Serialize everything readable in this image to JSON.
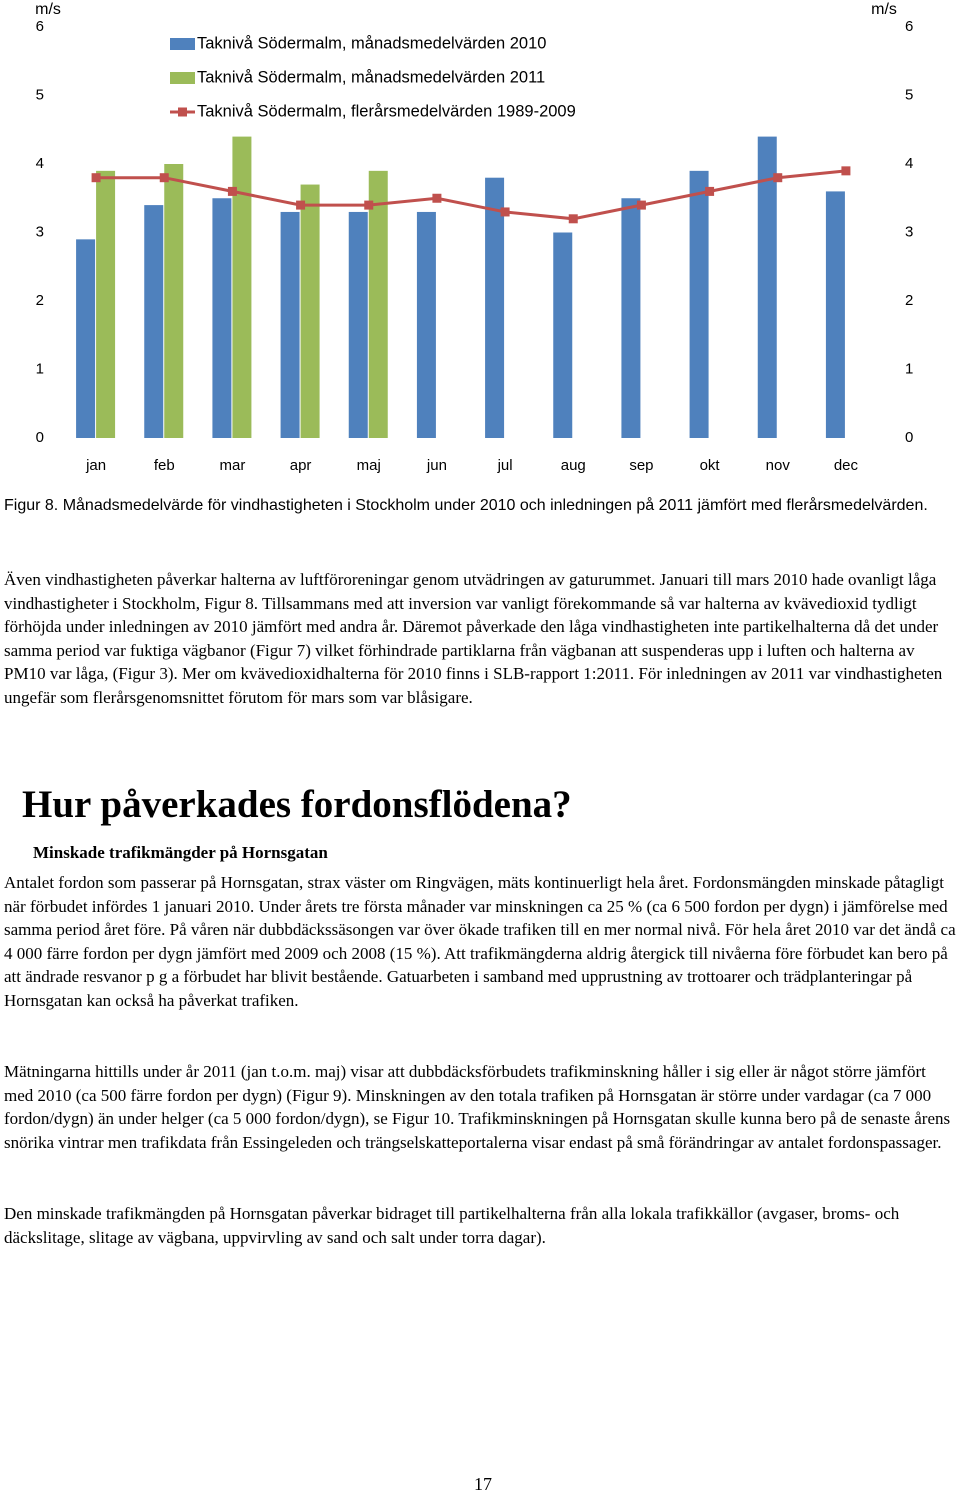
{
  "chart_data": {
    "type": "bar",
    "y_label": "m/s",
    "y2_label": "m/s",
    "categories": [
      "jan",
      "feb",
      "mar",
      "apr",
      "maj",
      "jun",
      "jul",
      "aug",
      "sep",
      "okt",
      "nov",
      "dec"
    ],
    "series": [
      {
        "name": "Taknivå Södermalm, månadsmedelvärden 2010",
        "type": "bar",
        "color": "#4f81bd",
        "values": [
          2.9,
          3.4,
          3.5,
          3.3,
          3.3,
          3.3,
          3.8,
          3.0,
          3.5,
          3.9,
          4.4,
          3.6
        ]
      },
      {
        "name": "Taknivå Södermalm, månadsmedelvärden 2011",
        "type": "bar",
        "color": "#9bbb59",
        "values": [
          3.9,
          4.0,
          4.4,
          3.7,
          3.9,
          null,
          null,
          null,
          null,
          null,
          null,
          null
        ]
      },
      {
        "name": "Taknivå Södermalm, flerårsmedelvärden 1989-2009",
        "type": "line",
        "color": "#c0504d",
        "values": [
          3.8,
          3.8,
          3.6,
          3.4,
          3.4,
          3.5,
          3.3,
          3.2,
          3.4,
          3.6,
          3.8,
          3.9
        ]
      }
    ],
    "ylim": [
      0,
      6
    ],
    "yticks": [
      0,
      1,
      2,
      3,
      4,
      5,
      6
    ],
    "y2lim": [
      0,
      6
    ],
    "y2ticks": [
      0,
      1,
      2,
      3,
      4,
      5,
      6
    ],
    "grid": false,
    "legend": "top-left"
  },
  "document": {
    "caption": "Figur 8. Månadsmedelvärde för vindhastigheten i Stockholm under 2010 och inledningen på 2011 jämfört med flerårsmedelvärden.",
    "paragraph_1": "Även vindhastigheten påverkar halterna av luftföroreningar genom utvädringen av gaturummet. Januari till mars 2010 hade ovanligt låga vindhastigheter i Stockholm, Figur 8. Tillsammans med att inversion var vanligt förekommande så var halterna av kvävedioxid tydligt förhöjda under inledningen av 2010 jämfört med andra år. Däremot påverkade den låga vindhastigheten inte partikelhalterna då det under samma period var fuktiga vägbanor (Figur 7) vilket förhindrade partiklarna från vägbanan att suspenderas upp i luften och halterna av PM10 var låga, (Figur 3). Mer om kvävedioxidhalterna för 2010 finns i SLB-rapport 1:2011. För inledningen av 2011 var vindhastigheten ungefär som flerårsgenomsnittet förutom för mars som var blåsigare.",
    "heading": "Hur påverkades fordonsflödena?",
    "subheading": "Minskade trafikmängder på Hornsgatan",
    "paragraph_2": "Antalet fordon som passerar på Hornsgatan, strax väster om Ringvägen, mäts kontinuerligt hela året. Fordonsmängden minskade påtagligt när förbudet infördes 1 januari 2010. Under årets tre första månader var minskningen ca 25 % (ca 6 500 fordon per dygn) i jämförelse med samma period året före. På våren när dubbdäckssäsongen var över ökade trafiken till en mer normal nivå. För hela året 2010 var det ändå ca 4 000 färre fordon per dygn jämfört med 2009 och 2008 (15 %). Att trafikmängderna aldrig återgick till nivåerna före förbudet kan bero på att ändrade resvanor p g a förbudet har blivit bestående. Gatuarbeten i samband med upprustning av trottoarer och trädplanteringar på Hornsgatan kan också ha påverkat trafiken.",
    "paragraph_3": "Mätningarna hittills under år 2011 (jan t.o.m. maj) visar att dubbdäcksförbudets trafikminskning håller i sig eller är något större jämfört med 2010 (ca 500 färre fordon per dygn) (Figur 9). Minskningen av den totala trafiken på Hornsgatan är större under vardagar (ca 7 000 fordon/dygn) än under helger (ca 5 000 fordon/dygn), se Figur 10. Trafikminskningen på Hornsgatan skulle kunna bero på de senaste årens snörika vintrar men trafikdata från Essingeleden och trängselskatteportalerna visar endast på små förändringar av antalet fordonspassager.",
    "paragraph_4": "Den minskade trafikmängden på Hornsgatan påverkar bidraget till partikelhalterna från alla lokala trafikkällor (avgaser, broms- och däckslitage, slitage av vägbana, uppvirvling av sand och salt under torra dagar).",
    "page_number": "17"
  }
}
